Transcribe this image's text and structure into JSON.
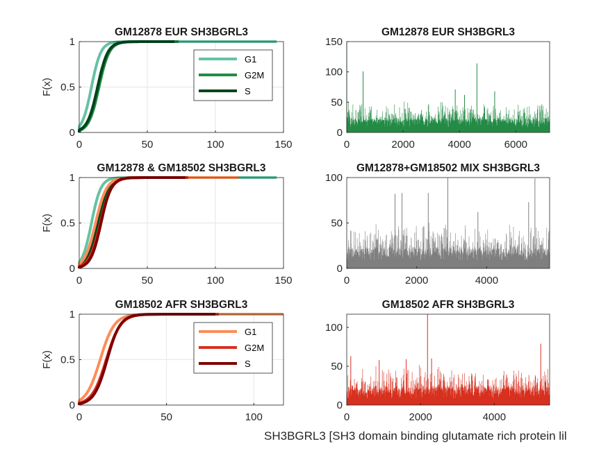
{
  "caption": "SH3BGRL3 [SH3 domain binding glutamate rich protein lil",
  "colors": {
    "eur": [
      "#66c2a4",
      "#238b45",
      "#00441b"
    ],
    "afr": [
      "#fc8d59",
      "#d7301f",
      "#7f0000"
    ],
    "mix_hist": "#7f7f7f",
    "eur_hist": "#238b45",
    "afr_hist": "#d7301f"
  },
  "chart_data": [
    {
      "id": "cdf_eur",
      "type": "line",
      "title": "GM12878 EUR SH3BGRL3",
      "ylabel": "F(x)",
      "xlim": [
        0,
        150
      ],
      "ylim": [
        0,
        1
      ],
      "xticks": [
        0,
        50,
        100,
        150
      ],
      "yticks": [
        0,
        0.5,
        1
      ],
      "grid": true,
      "legend_position": "top-right",
      "legend": [
        "G1",
        "G2M",
        "S"
      ],
      "series": [
        {
          "name": "G1",
          "color": "#66c2a4",
          "median": 9,
          "spread": 5.5,
          "xmax": 145
        },
        {
          "name": "G2M",
          "color": "#238b45",
          "median": 14.5,
          "spread": 6,
          "xmax": 73
        },
        {
          "name": "S",
          "color": "#00441b",
          "median": 13.5,
          "spread": 6,
          "xmax": 70
        }
      ]
    },
    {
      "id": "cdf_combined",
      "type": "line",
      "title": "GM12878 & GM18502 SH3BGRL3",
      "ylabel": "F(x)",
      "xlim": [
        0,
        150
      ],
      "ylim": [
        0,
        1
      ],
      "xticks": [
        0,
        50,
        100,
        150
      ],
      "yticks": [
        0,
        0.5,
        1
      ],
      "grid": true,
      "series": [
        {
          "color": "#66c2a4",
          "median": 9,
          "spread": 5.5,
          "xmax": 145
        },
        {
          "color": "#238b45",
          "median": 14.5,
          "spread": 6,
          "xmax": 73
        },
        {
          "color": "#00441b",
          "median": 13.5,
          "spread": 6,
          "xmax": 70
        },
        {
          "color": "#fc8d59",
          "median": 12,
          "spread": 6.5,
          "xmax": 117
        },
        {
          "color": "#d7301f",
          "median": 15.5,
          "spread": 6.5,
          "xmax": 80
        },
        {
          "color": "#7f0000",
          "median": 16,
          "spread": 6,
          "xmax": 78
        }
      ]
    },
    {
      "id": "cdf_afr",
      "type": "line",
      "title": "GM18502 AFR SH3BGRL3",
      "ylabel": "F(x)",
      "xlim": [
        0,
        117
      ],
      "ylim": [
        0,
        1
      ],
      "xticks": [
        0,
        50,
        100
      ],
      "yticks": [
        0,
        0.5,
        1
      ],
      "grid": true,
      "legend_position": "top-right",
      "legend": [
        "G1",
        "G2M",
        "S"
      ],
      "series": [
        {
          "name": "G1",
          "color": "#fc8d59",
          "median": 12,
          "spread": 6.5,
          "xmax": 117
        },
        {
          "name": "G2M",
          "color": "#d7301f",
          "median": 15.5,
          "spread": 6.5,
          "xmax": 80
        },
        {
          "name": "S",
          "color": "#7f0000",
          "median": 16,
          "spread": 6,
          "xmax": 78
        }
      ]
    },
    {
      "id": "hist_eur",
      "type": "bar",
      "title": "GM12878 EUR SH3BGRL3",
      "xlim": [
        0,
        7200
      ],
      "ylim": [
        0,
        150
      ],
      "xticks": [
        0,
        2000,
        4000,
        6000
      ],
      "yticks": [
        0,
        50,
        100,
        150
      ],
      "n": 7200,
      "color": "#238b45",
      "baseline": 14,
      "peaks": [
        [
          0,
          150
        ],
        [
          580,
          101
        ],
        [
          4620,
          114
        ],
        [
          3850,
          71
        ],
        [
          5250,
          68
        ],
        [
          4180,
          62
        ]
      ]
    },
    {
      "id": "hist_mix",
      "type": "bar",
      "title": "GM12878+GM18502 MIX SH3BGRL3",
      "xlim": [
        0,
        5800
      ],
      "ylim": [
        0,
        100
      ],
      "xticks": [
        0,
        2000,
        4000
      ],
      "yticks": [
        0,
        50,
        100
      ],
      "n": 5800,
      "color": "#7f7f7f",
      "baseline": 13,
      "peaks": [
        [
          2890,
          100
        ],
        [
          5380,
          99
        ],
        [
          1380,
          82
        ],
        [
          1580,
          83
        ],
        [
          2330,
          83
        ],
        [
          5200,
          73
        ],
        [
          3750,
          62
        ]
      ]
    },
    {
      "id": "hist_afr",
      "type": "bar",
      "title": "GM18502 AFR SH3BGRL3",
      "xlim": [
        0,
        5500
      ],
      "ylim": [
        0,
        117
      ],
      "xticks": [
        0,
        2000,
        4000
      ],
      "yticks": [
        0,
        50,
        100
      ],
      "n": 5500,
      "color": "#d7301f",
      "baseline": 14,
      "peaks": [
        [
          2190,
          117
        ],
        [
          110,
          63
        ],
        [
          880,
          58
        ],
        [
          2300,
          60
        ],
        [
          5260,
          79
        ],
        [
          1610,
          59
        ]
      ]
    }
  ]
}
